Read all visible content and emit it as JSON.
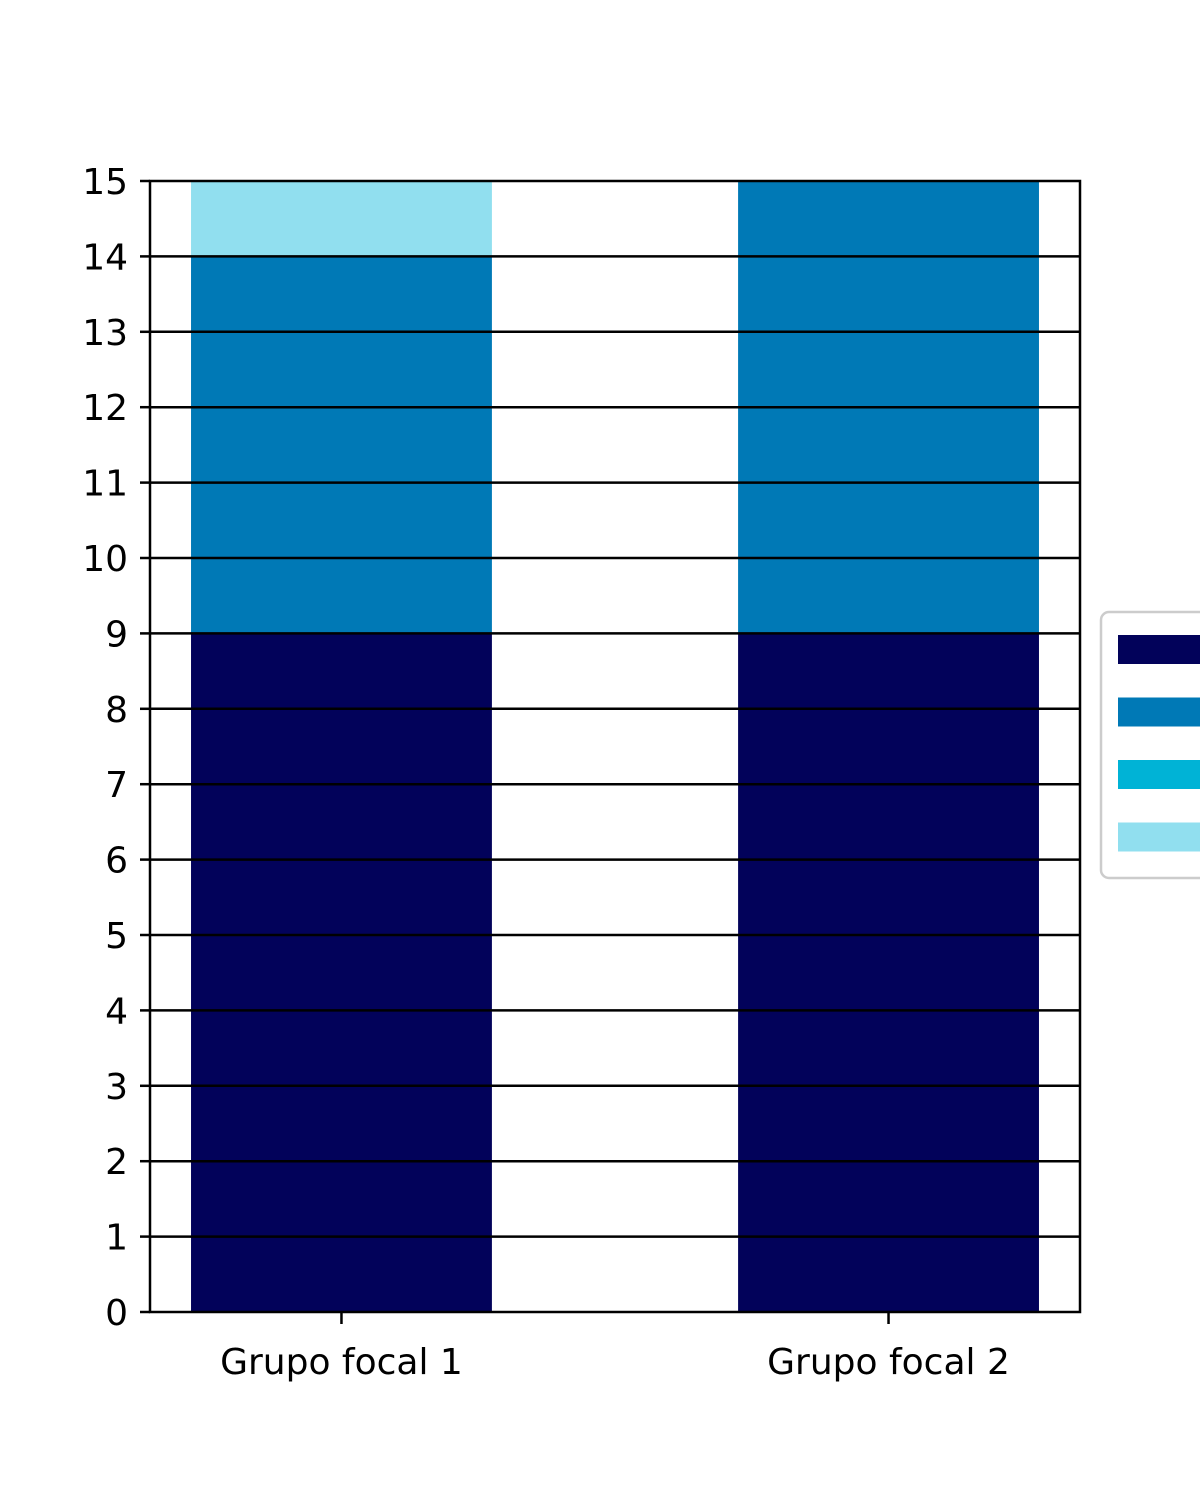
{
  "chart_data": {
    "type": "bar",
    "stacked": true,
    "title": "",
    "xlabel": "",
    "ylabel": "",
    "categories": [
      "Grupo focal 1",
      "Grupo focal 2"
    ],
    "series": [
      {
        "color": "#02025a",
        "values": [
          9,
          9
        ]
      },
      {
        "color": "#0079b6",
        "values": [
          5,
          6
        ]
      },
      {
        "color": "#00b3d6",
        "values": [
          0,
          0
        ]
      },
      {
        "color": "#91dfef",
        "values": [
          1,
          0
        ]
      }
    ],
    "ylim": [
      0,
      15
    ],
    "yticks": [
      0,
      1,
      2,
      3,
      4,
      5,
      6,
      7,
      8,
      9,
      10,
      11,
      12,
      13,
      14,
      15
    ],
    "grid": "horizontal lines at every integer, drawn above bars",
    "legend": {
      "placement": "right, outside plot area, clipped",
      "entries": [
        "",
        "",
        "",
        ""
      ]
    }
  }
}
